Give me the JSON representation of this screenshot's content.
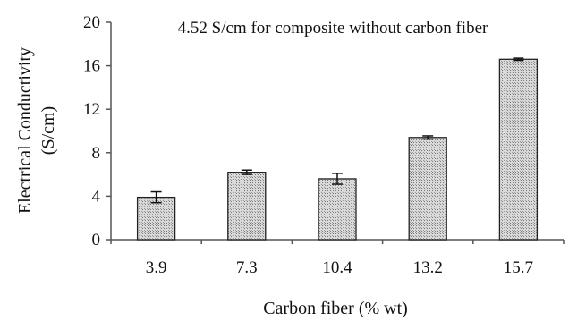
{
  "chart_data": {
    "type": "bar",
    "title": "4.52 S/cm for composite without carbon fiber",
    "xlabel": "Carbon fiber (% wt)",
    "ylabel_line1": "Electrical Conductivity",
    "ylabel_line2": "(S/cm)",
    "categories": [
      "3.9",
      "7.3",
      "10.4",
      "13.2",
      "15.7"
    ],
    "values": [
      3.9,
      6.2,
      5.6,
      9.4,
      16.6
    ],
    "error": [
      0.5,
      0.2,
      0.5,
      0.15,
      0.1
    ],
    "ylim": [
      0,
      20
    ],
    "yticks": [
      "0",
      "4",
      "8",
      "12",
      "16",
      "20"
    ],
    "grid": false,
    "bar_fill": "#c8c8c8",
    "bar_stroke": "#222222",
    "axis_color": "#555555"
  }
}
